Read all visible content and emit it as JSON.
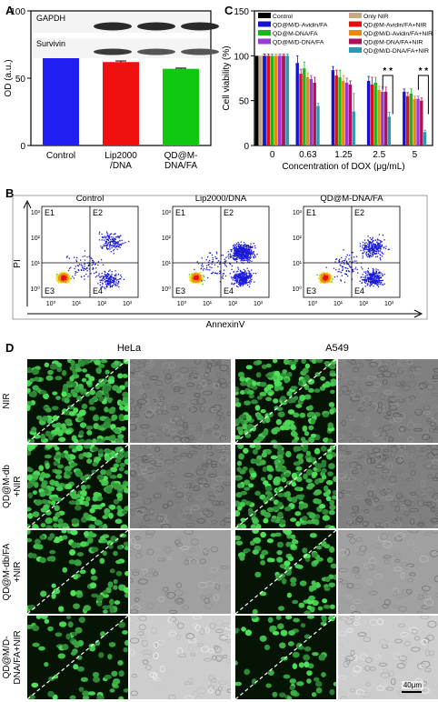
{
  "panel_letters": {
    "a": "A",
    "b": "B",
    "c": "C",
    "d": "D"
  },
  "chart_data": [
    {
      "panel": "A",
      "type": "bar",
      "ylabel": "OD (a.u.)",
      "ylim": [
        0,
        100
      ],
      "yticks": [
        0,
        50,
        100
      ],
      "categories": [
        "Control",
        "Lip2000\n/DNA",
        "QD@M-\nDNA/FA"
      ],
      "values": [
        75,
        62,
        57
      ],
      "errors": [
        0.8,
        0.8,
        0.5
      ],
      "colors": [
        "#1f1ff0",
        "#f01010",
        "#10c810"
      ],
      "blot_labels": [
        "GAPDH",
        "Survivin"
      ]
    },
    {
      "panel": "C",
      "type": "bar",
      "ylabel": "Cell viability (%)",
      "xlabel": "Concentration of DOX (μg/mL)",
      "ylim": [
        0,
        150
      ],
      "yticks": [
        0,
        50,
        100,
        150
      ],
      "categories": [
        "0",
        "0.63",
        "1.25",
        "2.5",
        "5"
      ],
      "series": [
        {
          "name": "Control",
          "color": "#000000",
          "values": [
            100,
            null,
            null,
            null,
            null
          ],
          "errors": [
            0,
            0,
            0,
            0,
            0
          ]
        },
        {
          "name": "Only NIR",
          "color": "#c8a97e",
          "values": [
            100,
            null,
            null,
            null,
            null
          ],
          "errors": [
            0,
            0,
            0,
            0,
            0
          ]
        },
        {
          "name": "QD@M/D-Avidin/FA",
          "color": "#1414d0",
          "values": [
            100,
            92,
            84,
            72,
            60
          ],
          "errors": [
            2,
            8,
            4,
            5,
            3
          ]
        },
        {
          "name": "QD@M-Avidin/FA+NIR",
          "color": "#e01010",
          "values": [
            100,
            80,
            78,
            68,
            55
          ],
          "errors": [
            2,
            5,
            6,
            8,
            4
          ]
        },
        {
          "name": "QD@M-DNA/FA",
          "color": "#18b818",
          "values": [
            100,
            86,
            76,
            70,
            58
          ],
          "errors": [
            2,
            7,
            8,
            6,
            5
          ]
        },
        {
          "name": "QD@M/D-Avidin/FA+NIR",
          "color": "#e88a10",
          "values": [
            100,
            76,
            72,
            62,
            52
          ],
          "errors": [
            2,
            5,
            6,
            4,
            3
          ]
        },
        {
          "name": "QD@M/D-DNA/FA",
          "color": "#9b38d8",
          "values": [
            100,
            74,
            70,
            60,
            52
          ],
          "errors": [
            2,
            4,
            5,
            5,
            3
          ]
        },
        {
          "name": "QD@M-DNA/FA+NIR",
          "color": "#b0105a",
          "values": [
            100,
            70,
            68,
            60,
            50
          ],
          "errors": [
            2,
            6,
            4,
            5,
            3
          ]
        },
        {
          "name": "QD@M/D-DNA/FA+NIR",
          "color": "#2a9ab0",
          "values": [
            100,
            44,
            38,
            32,
            15
          ],
          "errors": [
            2,
            3,
            20,
            5,
            2
          ]
        }
      ],
      "significance": [
        "* *",
        "* *"
      ]
    },
    {
      "panel": "B",
      "type": "scatter",
      "ylabel": "PI",
      "xlabel": "AnnexinV",
      "subplots": [
        "Control",
        "Lip2000/DNA",
        "QD@M-DNA/FA"
      ],
      "quadrants": [
        "E1",
        "E2",
        "E3",
        "E4"
      ],
      "x_ticks": [
        "10⁰",
        "10¹",
        "10²",
        "10³"
      ],
      "y_ticks": [
        "10⁰",
        "10¹",
        "10²",
        "10³"
      ]
    }
  ],
  "panel_d": {
    "cell_lines": [
      "HeLa",
      "A549"
    ],
    "rows": [
      "NIR",
      "QD@M-db\n+NIR",
      "QD@M-db/FA\n+NIR",
      "QD@M/D-\nDNA/FA+NIR"
    ],
    "scale_bar": "40μm",
    "green_density": [
      0.9,
      0.95,
      0.55,
      0.35
    ]
  }
}
